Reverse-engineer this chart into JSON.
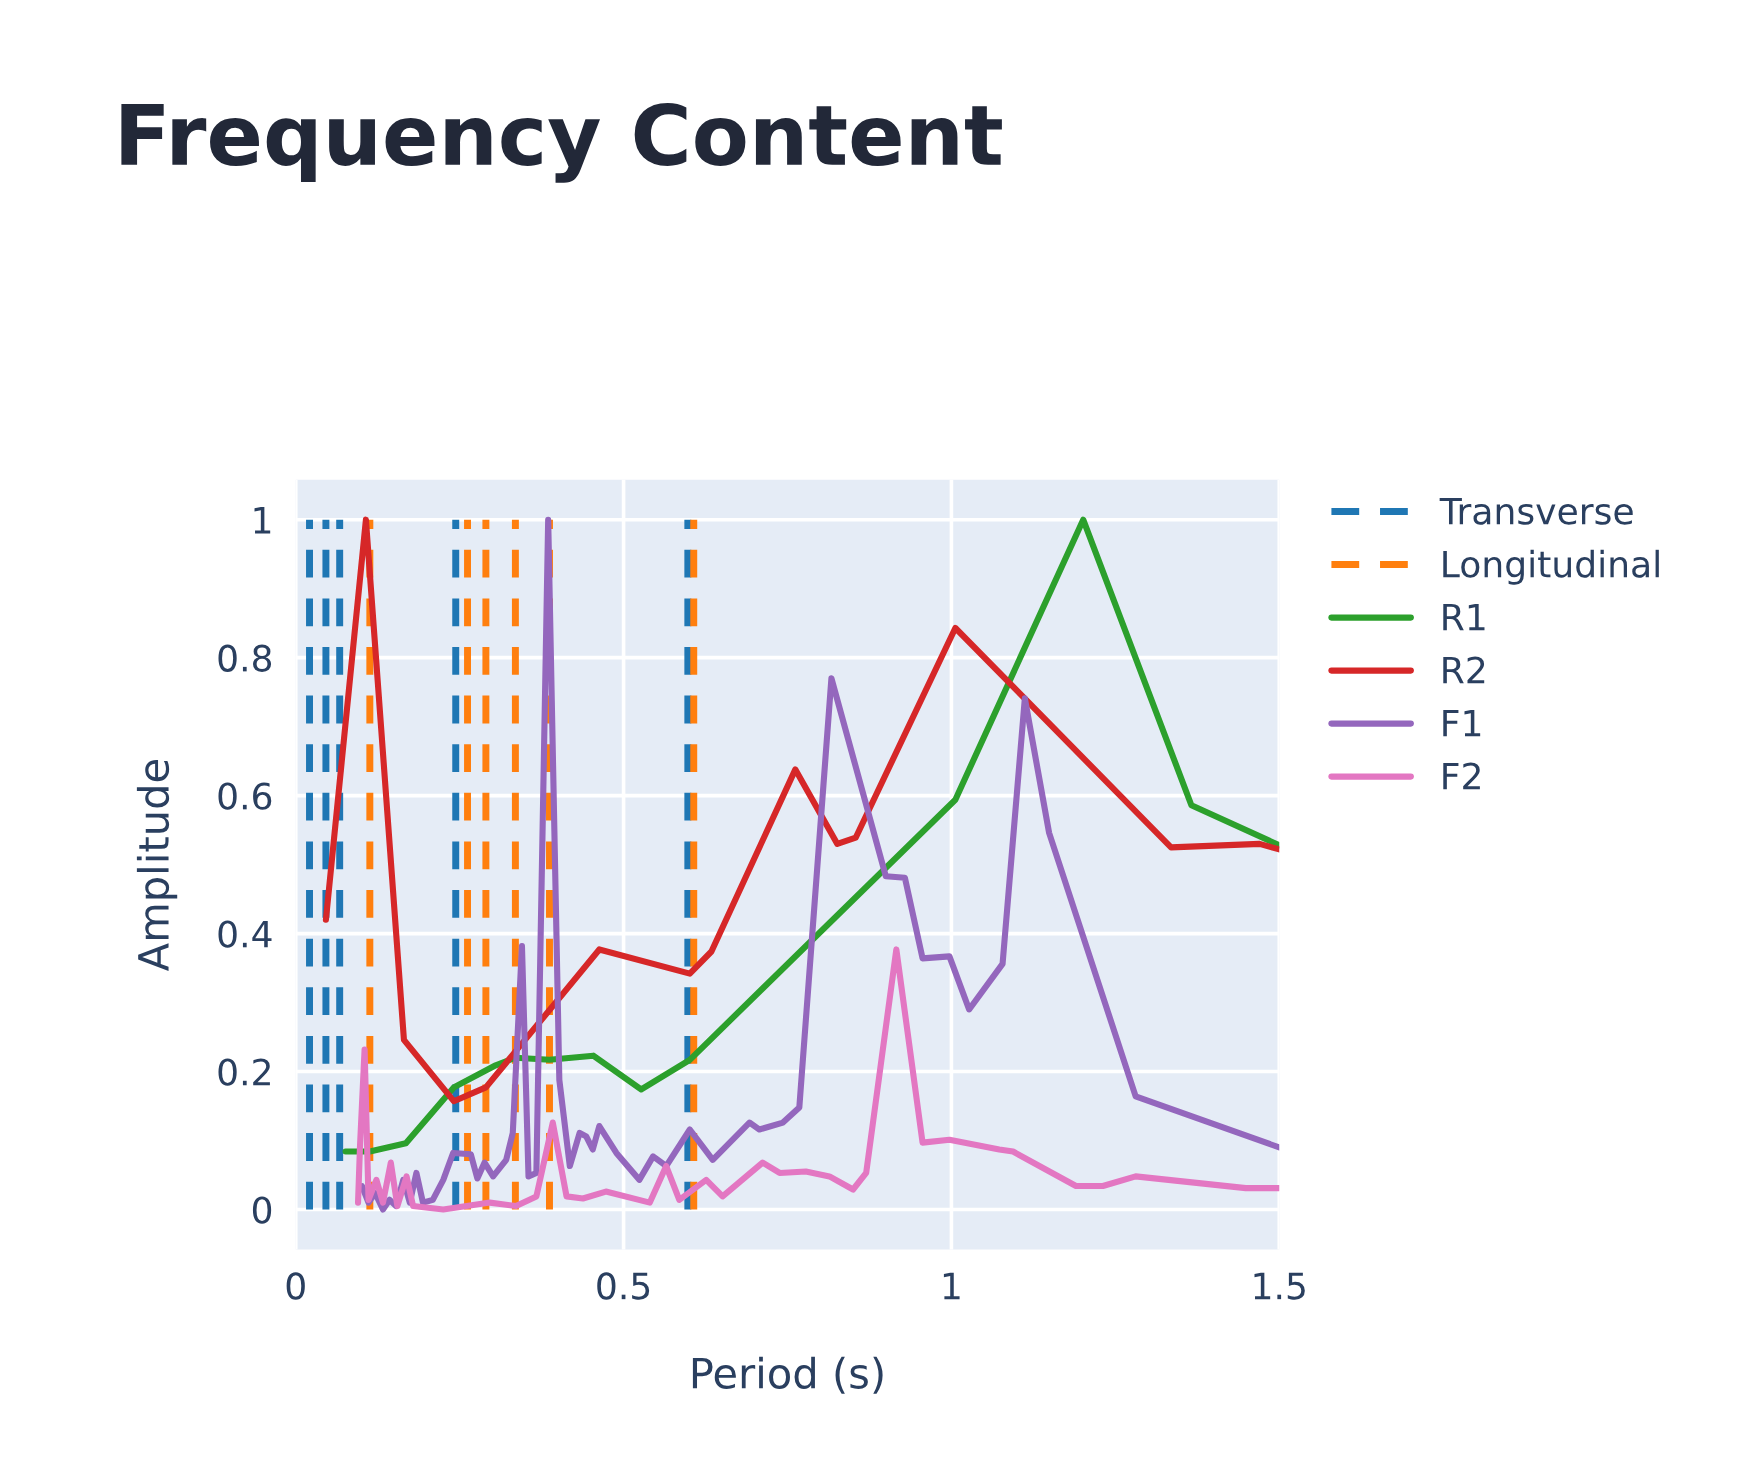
{
  "chart_data": {
    "type": "line",
    "title": "Frequency Content",
    "xlabel": "Period (s)",
    "ylabel": "Amplitude",
    "xlim": [
      0,
      1.5
    ],
    "xticks": [
      0,
      0.5,
      1,
      1.5
    ],
    "ylim": [
      -0.058,
      1.058
    ],
    "yticks": [
      0,
      0.2,
      0.4,
      0.6,
      0.8,
      1
    ],
    "grid": true,
    "legend": "right",
    "series": [
      {
        "name": "Transverse",
        "color": "#1f77b4",
        "line_style": "dashed",
        "x": [
          0.021,
          0.021,
          null,
          0.046,
          0.046,
          null,
          0.067,
          0.067,
          null,
          0.244,
          0.244,
          null,
          0.598,
          0.598
        ],
        "values": [
          0,
          1,
          null,
          0,
          1,
          null,
          0,
          1,
          null,
          0,
          1,
          null,
          0,
          1
        ]
      },
      {
        "name": "Longitudinal",
        "color": "#ff7f0e",
        "line_style": "dashed",
        "x": [
          0.113,
          0.113,
          null,
          0.262,
          0.262,
          null,
          0.29,
          0.29,
          null,
          0.335,
          0.335,
          null,
          0.387,
          0.387,
          null,
          0.607,
          0.607
        ],
        "values": [
          0,
          1,
          null,
          0,
          1,
          null,
          0,
          1,
          null,
          0,
          1,
          null,
          0,
          1,
          null,
          0,
          1
        ]
      },
      {
        "name": "R1",
        "color": "#2ca02c",
        "x": [
          0.076,
          0.113,
          0.168,
          0.241,
          0.305,
          0.335,
          0.387,
          0.454,
          0.527,
          0.601,
          1.006,
          1.201,
          1.366,
          1.5
        ],
        "values": [
          0.084,
          0.084,
          0.096,
          0.177,
          0.209,
          0.22,
          0.217,
          0.223,
          0.174,
          0.217,
          0.594,
          1.0,
          0.586,
          0.528
        ]
      },
      {
        "name": "R2",
        "color": "#d62728",
        "x": [
          0.046,
          0.107,
          0.165,
          0.241,
          0.29,
          0.463,
          0.601,
          0.634,
          0.762,
          0.826,
          0.854,
          1.006,
          1.335,
          1.47,
          1.5
        ],
        "values": [
          0.42,
          1.0,
          0.246,
          0.157,
          0.177,
          0.377,
          0.342,
          0.374,
          0.638,
          0.53,
          0.539,
          0.843,
          0.525,
          0.53,
          0.522
        ]
      },
      {
        "name": "F1",
        "color": "#9467bd",
        "x": [
          0.101,
          0.111,
          0.121,
          0.133,
          0.143,
          0.153,
          0.164,
          0.174,
          0.184,
          0.194,
          0.209,
          0.225,
          0.24,
          0.267,
          0.277,
          0.288,
          0.301,
          0.321,
          0.331,
          0.345,
          0.355,
          0.367,
          0.385,
          0.402,
          0.418,
          0.433,
          0.443,
          0.453,
          0.463,
          0.489,
          0.524,
          0.545,
          0.565,
          0.601,
          0.636,
          0.692,
          0.707,
          0.743,
          0.768,
          0.817,
          0.9,
          0.929,
          0.956,
          0.997,
          1.027,
          1.078,
          1.112,
          1.149,
          1.281,
          1.5
        ],
        "values": [
          0.034,
          0.01,
          0.024,
          0.0,
          0.014,
          0.005,
          0.043,
          0.01,
          0.053,
          0.01,
          0.014,
          0.043,
          0.082,
          0.08,
          0.045,
          0.068,
          0.048,
          0.072,
          0.111,
          0.382,
          0.048,
          0.053,
          1.0,
          0.188,
          0.063,
          0.111,
          0.106,
          0.087,
          0.121,
          0.082,
          0.043,
          0.077,
          0.063,
          0.116,
          0.072,
          0.126,
          0.116,
          0.126,
          0.148,
          0.77,
          0.483,
          0.481,
          0.364,
          0.367,
          0.29,
          0.356,
          0.741,
          0.546,
          0.164,
          0.09
        ]
      },
      {
        "name": "F2",
        "color": "#e377c2",
        "x": [
          0.095,
          0.098,
          0.105,
          0.111,
          0.123,
          0.133,
          0.145,
          0.155,
          0.169,
          0.179,
          0.225,
          0.296,
          0.336,
          0.367,
          0.392,
          0.413,
          0.438,
          0.473,
          0.54,
          0.565,
          0.585,
          0.626,
          0.651,
          0.712,
          0.738,
          0.778,
          0.814,
          0.85,
          0.87,
          0.916,
          0.956,
          0.997,
          1.073,
          1.094,
          1.19,
          1.231,
          1.281,
          1.449,
          1.5
        ],
        "values": [
          0.01,
          0.092,
          0.232,
          0.014,
          0.043,
          0.01,
          0.068,
          0.005,
          0.048,
          0.005,
          0.0,
          0.01,
          0.005,
          0.019,
          0.126,
          0.019,
          0.016,
          0.026,
          0.01,
          0.063,
          0.014,
          0.043,
          0.019,
          0.068,
          0.053,
          0.055,
          0.048,
          0.029,
          0.053,
          0.377,
          0.097,
          0.101,
          0.087,
          0.084,
          0.034,
          0.034,
          0.048,
          0.031,
          0.031
        ]
      }
    ]
  }
}
